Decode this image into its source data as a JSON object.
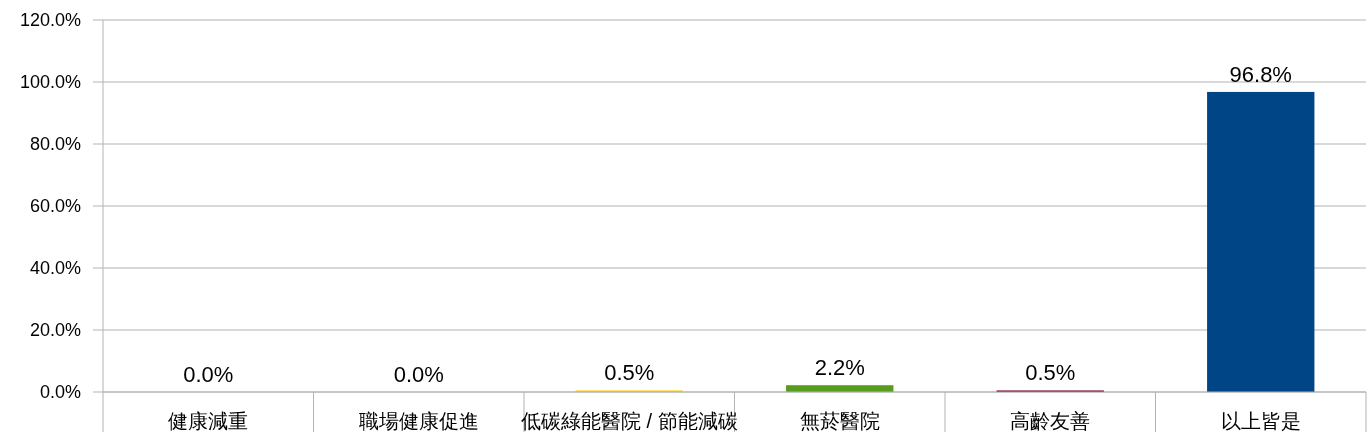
{
  "chart_data": {
    "type": "bar",
    "categories": [
      "健康減重",
      "職場健康促進",
      "低碳綠能醫院 / 節能減碳",
      "無菸醫院",
      "高齡友善",
      "以上皆是"
    ],
    "values": [
      0,
      0,
      0.5,
      2.2,
      0.5,
      96.8
    ],
    "colors": [
      null,
      null,
      "#ffcc00",
      "#579d1c",
      "#7e0021",
      "#004586"
    ],
    "value_labels": [
      "0.0%",
      "0.0%",
      "0.5%",
      "2.2%",
      "0.5%",
      "96.8%"
    ],
    "ylim": [
      0,
      120
    ],
    "yticks": [
      {
        "value": 0,
        "label": "0.0%"
      },
      {
        "value": 20,
        "label": "20.0%"
      },
      {
        "value": 40,
        "label": "40.0%"
      },
      {
        "value": 60,
        "label": "60.0%"
      },
      {
        "value": 80,
        "label": "80.0%"
      },
      {
        "value": 100,
        "label": "100.0%"
      },
      {
        "value": 120,
        "label": "120.0%"
      }
    ],
    "grid": "y"
  }
}
